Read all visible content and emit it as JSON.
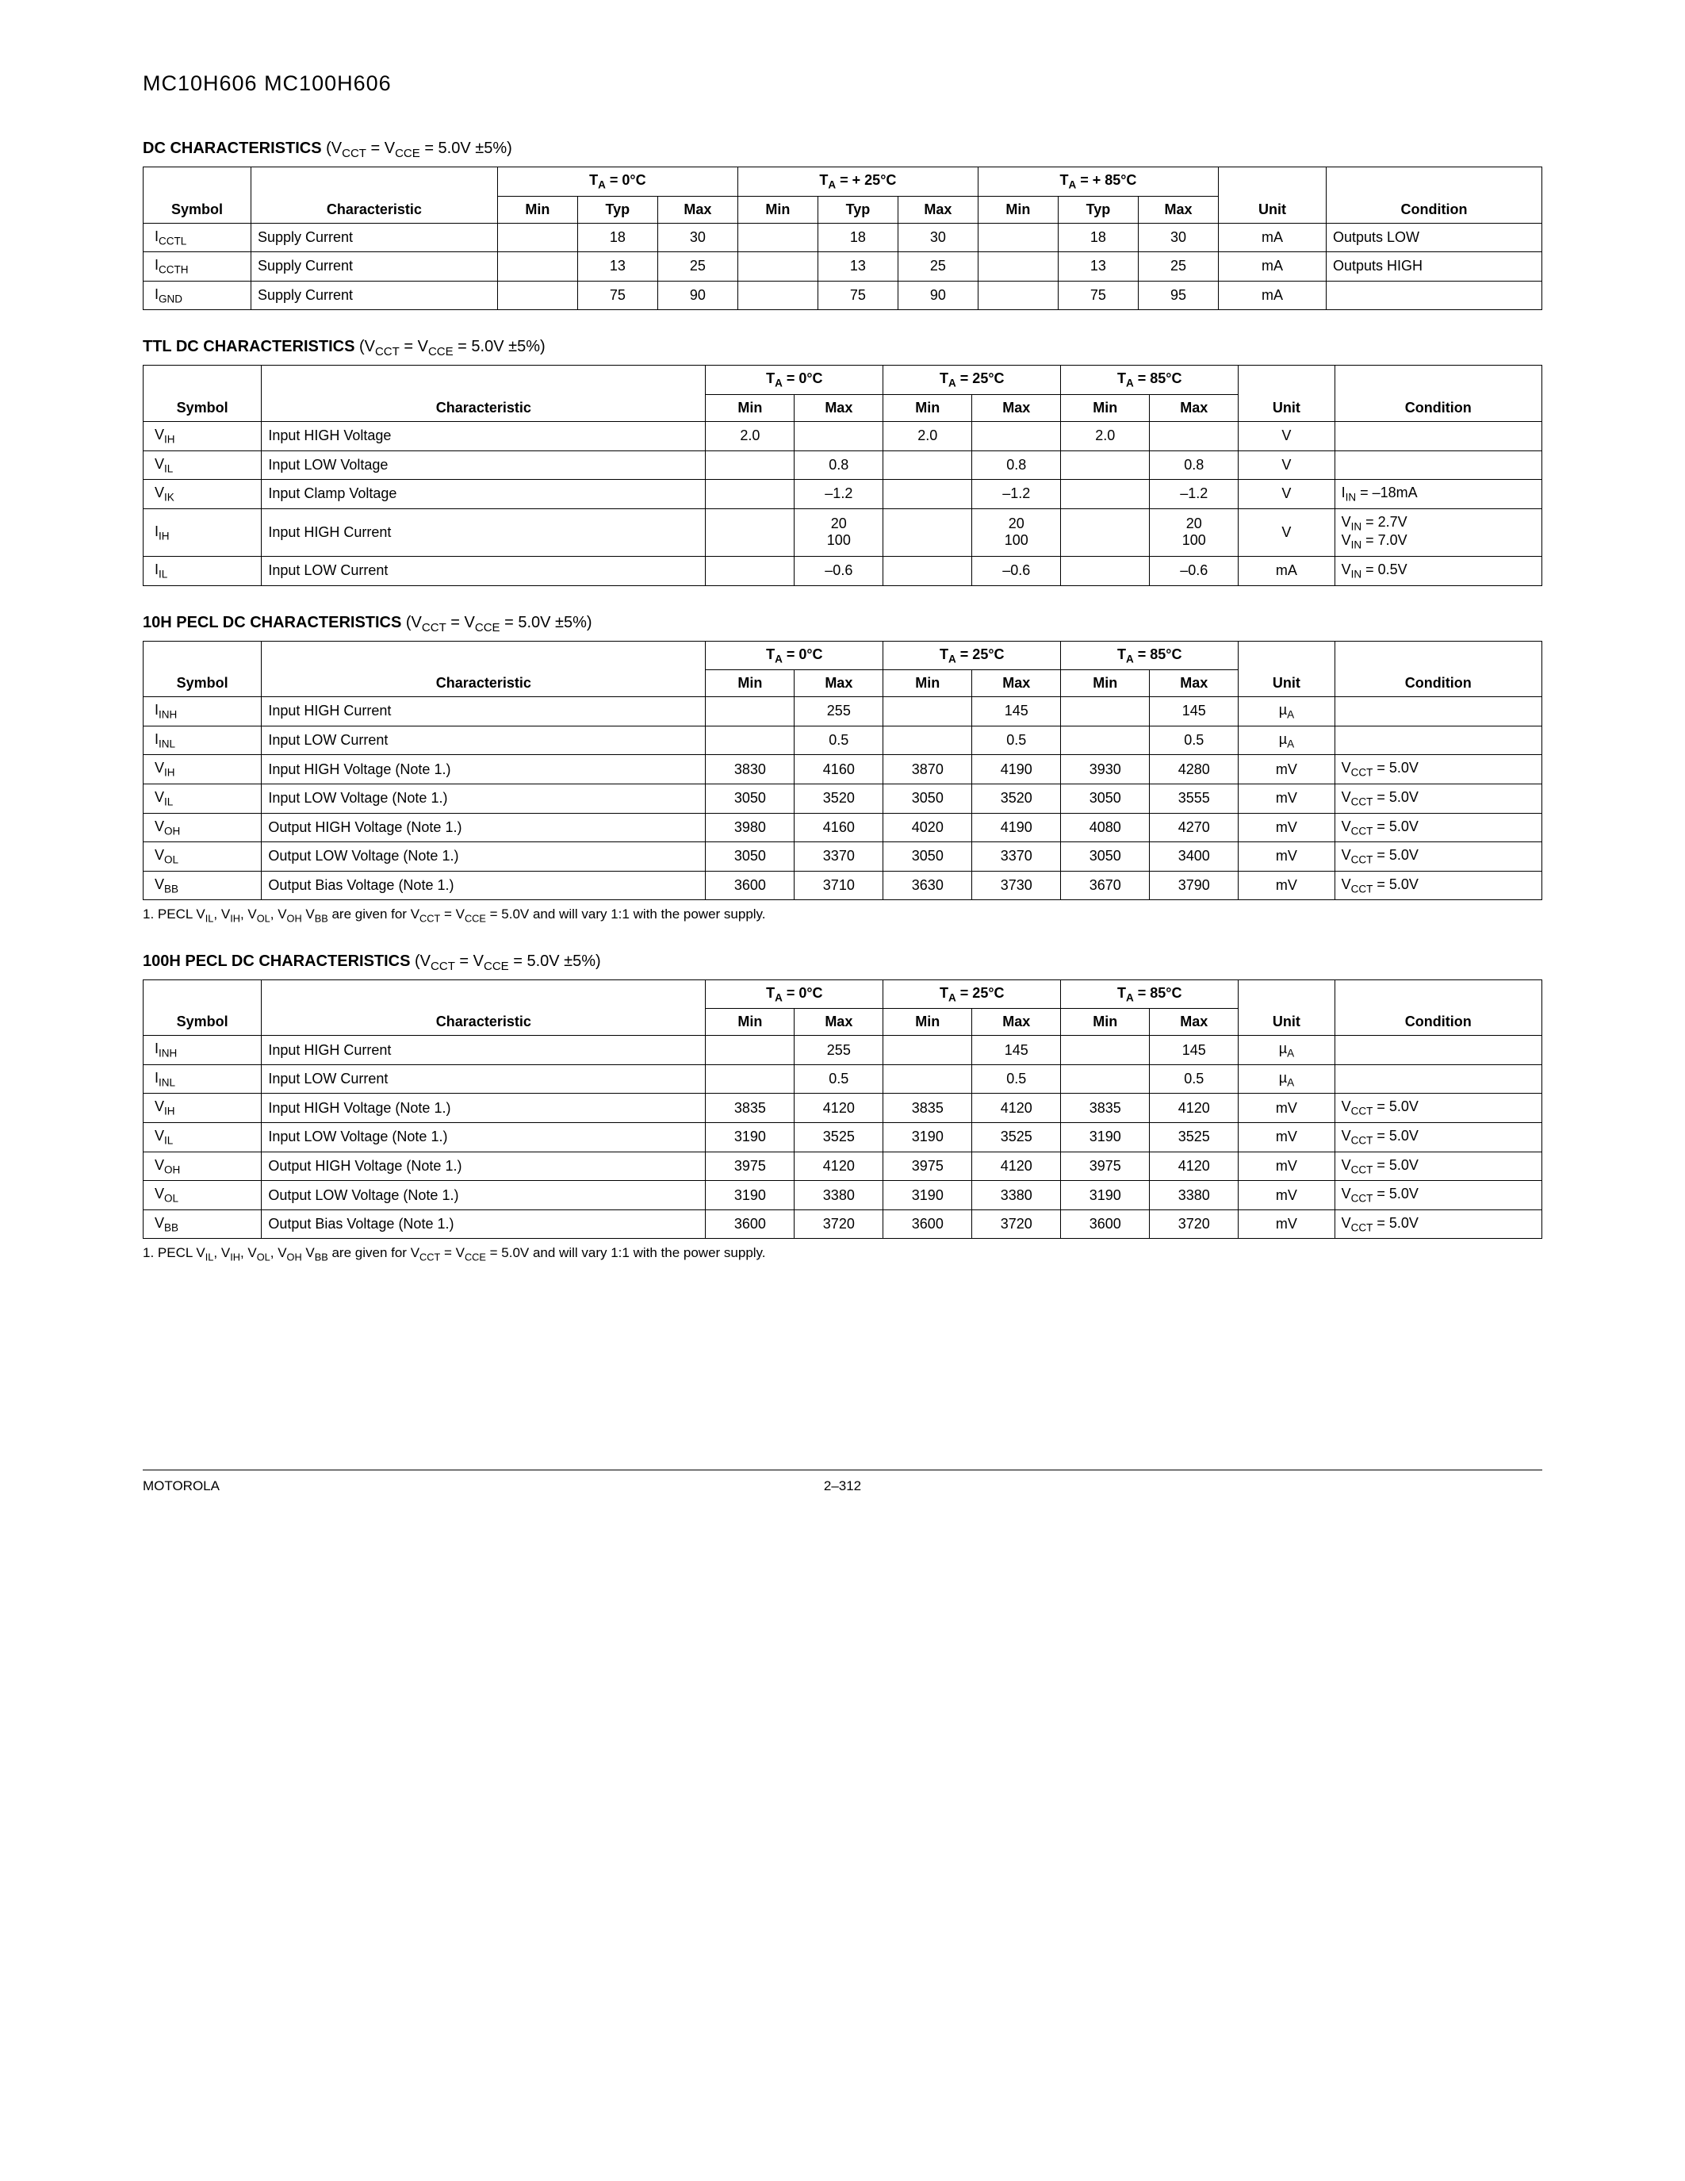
{
  "page_title": "MC10H606 MC100H606",
  "footer_left": "MOTOROLA",
  "footer_page": "2–312",
  "sections": {
    "dc": {
      "title_bold": "DC CHARACTERISTICS",
      "title_cond": " (V",
      "title_cond_sub1": "CCT",
      "title_cond_mid": " = V",
      "title_cond_sub2": "CCE",
      "title_cond_end": " = 5.0V ±5%)",
      "temps": [
        "T_A = 0°C",
        "T_A = + 25°C",
        "T_A = + 85°C"
      ],
      "head_symbol": "Symbol",
      "head_char": "Characteristic",
      "head_min": "Min",
      "head_typ": "Typ",
      "head_max": "Max",
      "head_unit": "Unit",
      "head_cond": "Condition",
      "rows": [
        {
          "sym": "I",
          "sub": "CCTL",
          "char": "Supply Current",
          "c": [
            "",
            "18",
            "30",
            "",
            "18",
            "30",
            "",
            "18",
            "30"
          ],
          "unit": "mA",
          "cond": "Outputs LOW"
        },
        {
          "sym": "I",
          "sub": "CCTH",
          "char": "Supply Current",
          "c": [
            "",
            "13",
            "25",
            "",
            "13",
            "25",
            "",
            "13",
            "25"
          ],
          "unit": "mA",
          "cond": "Outputs HIGH"
        },
        {
          "sym": "I",
          "sub": "GND",
          "char": "Supply Current",
          "c": [
            "",
            "75",
            "90",
            "",
            "75",
            "90",
            "",
            "75",
            "95"
          ],
          "unit": "mA",
          "cond": ""
        }
      ]
    },
    "ttl": {
      "title_bold": "TTL DC CHARACTERISTICS",
      "temps": [
        "T_A = 0°C",
        "T_A = 25°C",
        "T_A = 85°C"
      ],
      "rows": [
        {
          "sym": "V",
          "sub": "IH",
          "char": "Input HIGH Voltage",
          "c": [
            "2.0",
            "",
            "2.0",
            "",
            "2.0",
            ""
          ],
          "unit": "V",
          "cond": ""
        },
        {
          "sym": "V",
          "sub": "IL",
          "char": "Input LOW Voltage",
          "c": [
            "",
            "0.8",
            "",
            "0.8",
            "",
            "0.8"
          ],
          "unit": "V",
          "cond": ""
        },
        {
          "sym": "V",
          "sub": "IK",
          "char": "Input Clamp Voltage",
          "c": [
            "",
            "–1.2",
            "",
            "–1.2",
            "",
            "–1.2"
          ],
          "unit": "V",
          "cond": "I_IN = –18mA"
        },
        {
          "sym": "I",
          "sub": "IH",
          "char": "Input HIGH Current",
          "c": [
            "",
            "20\n100",
            "",
            "20\n100",
            "",
            "20\n100"
          ],
          "unit": "V",
          "cond": "V_IN = 2.7V\nV_IN = 7.0V"
        },
        {
          "sym": "I",
          "sub": "IL",
          "char": "Input LOW Current",
          "c": [
            "",
            "–0.6",
            "",
            "–0.6",
            "",
            "–0.6"
          ],
          "unit": "mA",
          "cond": "V_IN = 0.5V"
        }
      ]
    },
    "pecl10h": {
      "title_bold": "10H PECL DC CHARACTERISTICS",
      "temps": [
        "T_A = 0°C",
        "T_A = 25°C",
        "T_A = 85°C"
      ],
      "rows": [
        {
          "sym": "I",
          "sub": "INH",
          "char": "Input HIGH Current",
          "c": [
            "",
            "255",
            "",
            "145",
            "",
            "145"
          ],
          "unit": "µ_A",
          "cond": ""
        },
        {
          "sym": "I",
          "sub": "INL",
          "char": "Input LOW Current",
          "c": [
            "",
            "0.5",
            "",
            "0.5",
            "",
            "0.5"
          ],
          "unit": "µ_A",
          "cond": ""
        },
        {
          "sym": "V",
          "sub": "IH",
          "char": "Input HIGH Voltage (Note 1.)",
          "c": [
            "3830",
            "4160",
            "3870",
            "4190",
            "3930",
            "4280"
          ],
          "unit": "mV",
          "cond": "V_CCT = 5.0V"
        },
        {
          "sym": "V",
          "sub": "IL",
          "char": "Input LOW Voltage (Note 1.)",
          "c": [
            "3050",
            "3520",
            "3050",
            "3520",
            "3050",
            "3555"
          ],
          "unit": "mV",
          "cond": "V_CCT = 5.0V"
        },
        {
          "sym": "V",
          "sub": "OH",
          "char": "Output HIGH Voltage (Note 1.)",
          "c": [
            "3980",
            "4160",
            "4020",
            "4190",
            "4080",
            "4270"
          ],
          "unit": "mV",
          "cond": "V_CCT = 5.0V"
        },
        {
          "sym": "V",
          "sub": "OL",
          "char": "Output LOW Voltage (Note 1.)",
          "c": [
            "3050",
            "3370",
            "3050",
            "3370",
            "3050",
            "3400"
          ],
          "unit": "mV",
          "cond": "V_CCT = 5.0V"
        },
        {
          "sym": "V",
          "sub": "BB",
          "char": "Output Bias Voltage (Note 1.)",
          "c": [
            "3600",
            "3710",
            "3630",
            "3730",
            "3670",
            "3790"
          ],
          "unit": "mV",
          "cond": "V_CCT = 5.0V"
        }
      ],
      "footnote": "1.   PECL V_IL, V_IH, V_OL, V_OH V_BB are given for V_CCT = V_CCE = 5.0V and will vary 1:1 with the power supply."
    },
    "pecl100h": {
      "title_bold": "100H PECL DC CHARACTERISTICS",
      "temps": [
        "T_A = 0°C",
        "T_A = 25°C",
        "T_A = 85°C"
      ],
      "rows": [
        {
          "sym": "I",
          "sub": "INH",
          "char": "Input HIGH Current",
          "c": [
            "",
            "255",
            "",
            "145",
            "",
            "145"
          ],
          "unit": "µ_A",
          "cond": ""
        },
        {
          "sym": "I",
          "sub": "INL",
          "char": "Input LOW Current",
          "c": [
            "",
            "0.5",
            "",
            "0.5",
            "",
            "0.5"
          ],
          "unit": "µ_A",
          "cond": ""
        },
        {
          "sym": "V",
          "sub": "IH",
          "char": "Input HIGH Voltage (Note 1.)",
          "c": [
            "3835",
            "4120",
            "3835",
            "4120",
            "3835",
            "4120"
          ],
          "unit": "mV",
          "cond": "V_CCT = 5.0V"
        },
        {
          "sym": "V",
          "sub": "IL",
          "char": "Input LOW Voltage (Note 1.)",
          "c": [
            "3190",
            "3525",
            "3190",
            "3525",
            "3190",
            "3525"
          ],
          "unit": "mV",
          "cond": "V_CCT = 5.0V"
        },
        {
          "sym": "V",
          "sub": "OH",
          "char": "Output HIGH Voltage (Note 1.)",
          "c": [
            "3975",
            "4120",
            "3975",
            "4120",
            "3975",
            "4120"
          ],
          "unit": "mV",
          "cond": "V_CCT = 5.0V"
        },
        {
          "sym": "V",
          "sub": "OL",
          "char": "Output LOW Voltage (Note 1.)",
          "c": [
            "3190",
            "3380",
            "3190",
            "3380",
            "3190",
            "3380"
          ],
          "unit": "mV",
          "cond": "V_CCT = 5.0V"
        },
        {
          "sym": "V",
          "sub": "BB",
          "char": "Output Bias Voltage (Note 1.)",
          "c": [
            "3600",
            "3720",
            "3600",
            "3720",
            "3600",
            "3720"
          ],
          "unit": "mV",
          "cond": "V_CCT = 5.0V"
        }
      ],
      "footnote": "1.   PECL V_IL, V_IH, V_OL, V_OH V_BB are given for V_CCT = V_CCE = 5.0V and will vary 1:1 with the power supply."
    }
  },
  "colwidths": {
    "dc": {
      "symbol": "7%",
      "char": "16%",
      "num": "5.2%",
      "unit": "7%",
      "cond": "14%"
    },
    "six": {
      "symbol": "8%",
      "char": "30%",
      "num": "6%",
      "unit": "6.5%",
      "cond": "14%"
    }
  }
}
